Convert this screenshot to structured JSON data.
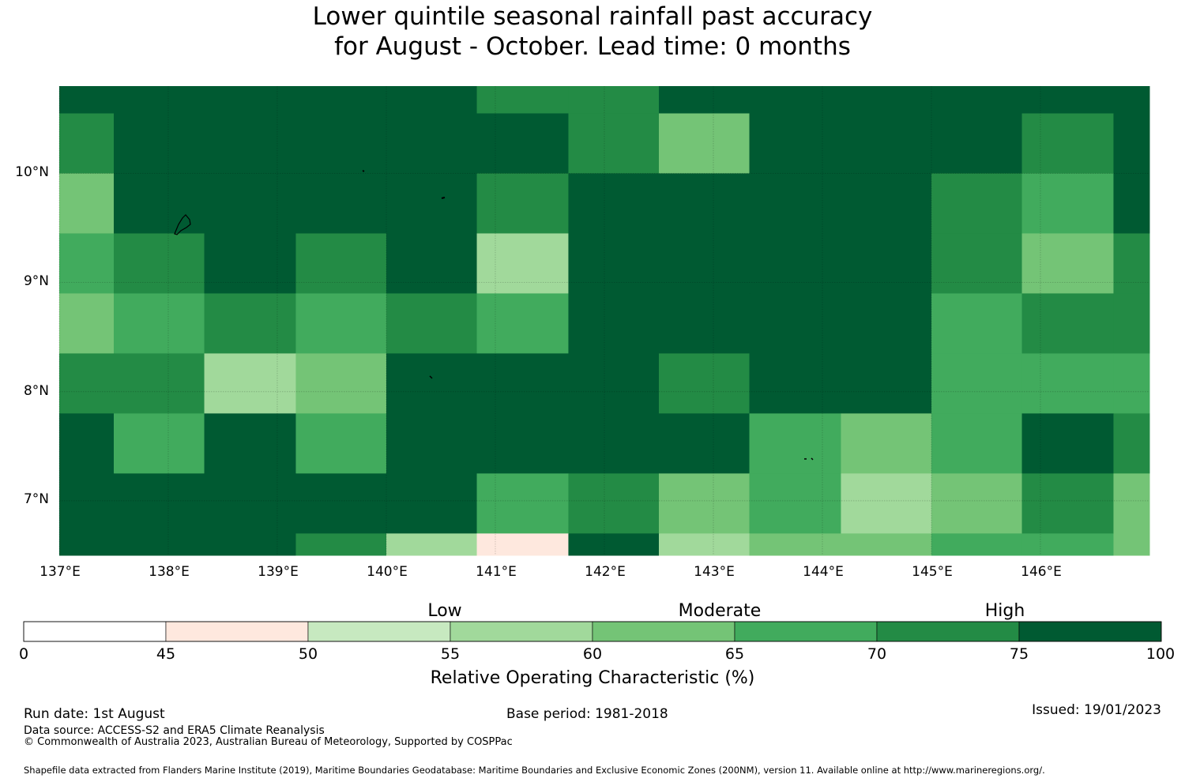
{
  "title": {
    "line1": "Lower quintile seasonal rainfall past accuracy",
    "line2": "for August - October. Lead time: 0 months"
  },
  "axes": {
    "lat_labels": [
      "10°N",
      "9°N",
      "8°N",
      "7°N"
    ],
    "lon_labels": [
      "137°E",
      "138°E",
      "139°E",
      "140°E",
      "141°E",
      "142°E",
      "143°E",
      "144°E",
      "145°E",
      "146°E"
    ],
    "lon_range": [
      137.0,
      147.0
    ],
    "lat_range": [
      6.5,
      10.8
    ],
    "gridlines": true
  },
  "colorbar": {
    "label": "Relative Operating Characteristic (%)",
    "tick_labels": [
      "0",
      "45",
      "50",
      "55",
      "60",
      "65",
      "70",
      "75",
      "100"
    ],
    "categories": [
      "Low",
      "Moderate",
      "High"
    ],
    "colors": [
      "#ffffff",
      "#fee8de",
      "#c7e9c0",
      "#a1d99b",
      "#74c476",
      "#41ab5d",
      "#238b45",
      "#005a32"
    ]
  },
  "chart_data": {
    "type": "heatmap",
    "title": "Lower quintile seasonal rainfall past accuracy for August - October. Lead time: 0 months",
    "x_unit": "longitude",
    "y_unit": "latitude",
    "bins": [
      0,
      45,
      50,
      55,
      60,
      65,
      70,
      75,
      100
    ],
    "lon_edges": [
      137.0,
      137.5,
      138.33,
      139.17,
      140.0,
      140.83,
      141.67,
      142.5,
      143.33,
      144.17,
      145.0,
      145.83,
      146.67,
      147.0
    ],
    "lat_edges": [
      10.8,
      10.55,
      10.0,
      9.45,
      8.9,
      8.35,
      7.8,
      7.25,
      6.7,
      6.5
    ],
    "grid_bin_index": [
      [
        7,
        7,
        7,
        7,
        7,
        6,
        6,
        7,
        7,
        7,
        7,
        7,
        7
      ],
      [
        6,
        7,
        7,
        7,
        7,
        7,
        6,
        4,
        7,
        7,
        7,
        6,
        7
      ],
      [
        4,
        7,
        7,
        7,
        7,
        6,
        7,
        7,
        7,
        7,
        6,
        5,
        7
      ],
      [
        5,
        6,
        7,
        6,
        7,
        3,
        7,
        7,
        7,
        7,
        6,
        4,
        6
      ],
      [
        4,
        5,
        6,
        5,
        6,
        5,
        7,
        7,
        7,
        7,
        5,
        6,
        6
      ],
      [
        6,
        6,
        3,
        4,
        7,
        7,
        7,
        6,
        7,
        7,
        5,
        5,
        5
      ],
      [
        7,
        5,
        7,
        5,
        7,
        7,
        7,
        7,
        5,
        4,
        5,
        7,
        6
      ],
      [
        7,
        7,
        7,
        7,
        7,
        5,
        6,
        4,
        5,
        3,
        4,
        6,
        4
      ],
      [
        7,
        7,
        7,
        6,
        3,
        1,
        7,
        3,
        4,
        4,
        5,
        5,
        4
      ]
    ]
  },
  "footer": {
    "run_date": "Run date: 1st August",
    "base_period": "Base period: 1981-2018",
    "issued": "Issued: 19/01/2023",
    "data_source": "Data source: ACCESS-S2 and ERA5 Climate Reanalysis",
    "copyright": "© Commonwealth of Australia 2023, Australian Bureau of Meteorology, Supported by COSPPac",
    "shapefile": "Shapefile data extracted from Flanders Marine Institute (2019), Maritime Boundaries Geodatabase: Maritime Boundaries and Exclusive Economic Zones (200NM), version 11. Available online at http://www.marineregions.org/."
  }
}
